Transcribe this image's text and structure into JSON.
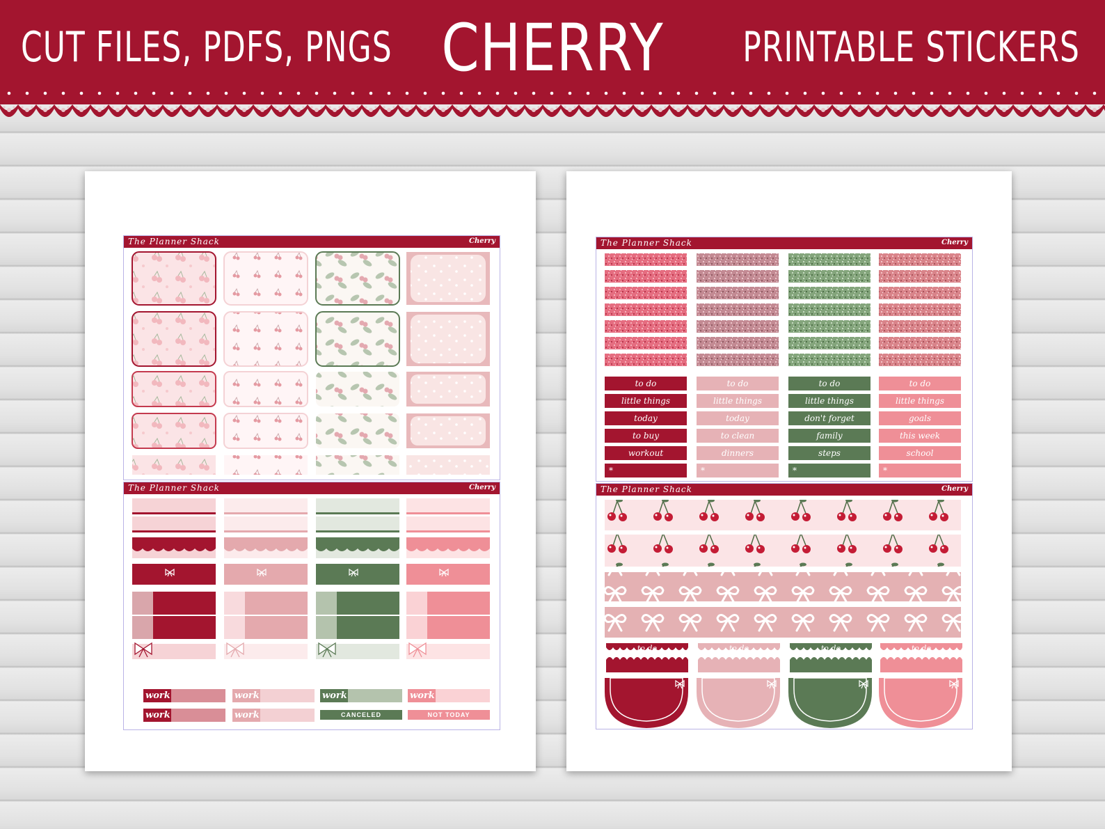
{
  "banner": {
    "left_text": "CUT FILES, PDFS, PNGS",
    "title": "CHERRY",
    "right_text": "PRINTABLE STICKERS",
    "color": "#a3152f"
  },
  "kit": {
    "brand": "The Planner Shack",
    "name": "Cherry"
  },
  "palette": {
    "crimson": "#a3152f",
    "blush": "#e6b2b6",
    "sage": "#5b7a55",
    "coral": "#ef8f97",
    "pale_pink": "#fbe4e6"
  },
  "left_sheet": {
    "work_label": "work",
    "canceled_label": "CANCELED",
    "not_today_label": "NOT TODAY",
    "bow_icon": "bow-icon"
  },
  "right_sheet": {
    "col1_labels": [
      "to do",
      "little things",
      "today",
      "to buy",
      "workout"
    ],
    "col2_labels": [
      "to do",
      "little things",
      "today",
      "to clean",
      "dinners"
    ],
    "col3_labels": [
      "to do",
      "little things",
      "don't forget",
      "family",
      "steps"
    ],
    "col4_labels": [
      "to do",
      "little things",
      "goals",
      "this week",
      "school"
    ],
    "snowflake": "*",
    "header_label": "to do"
  }
}
